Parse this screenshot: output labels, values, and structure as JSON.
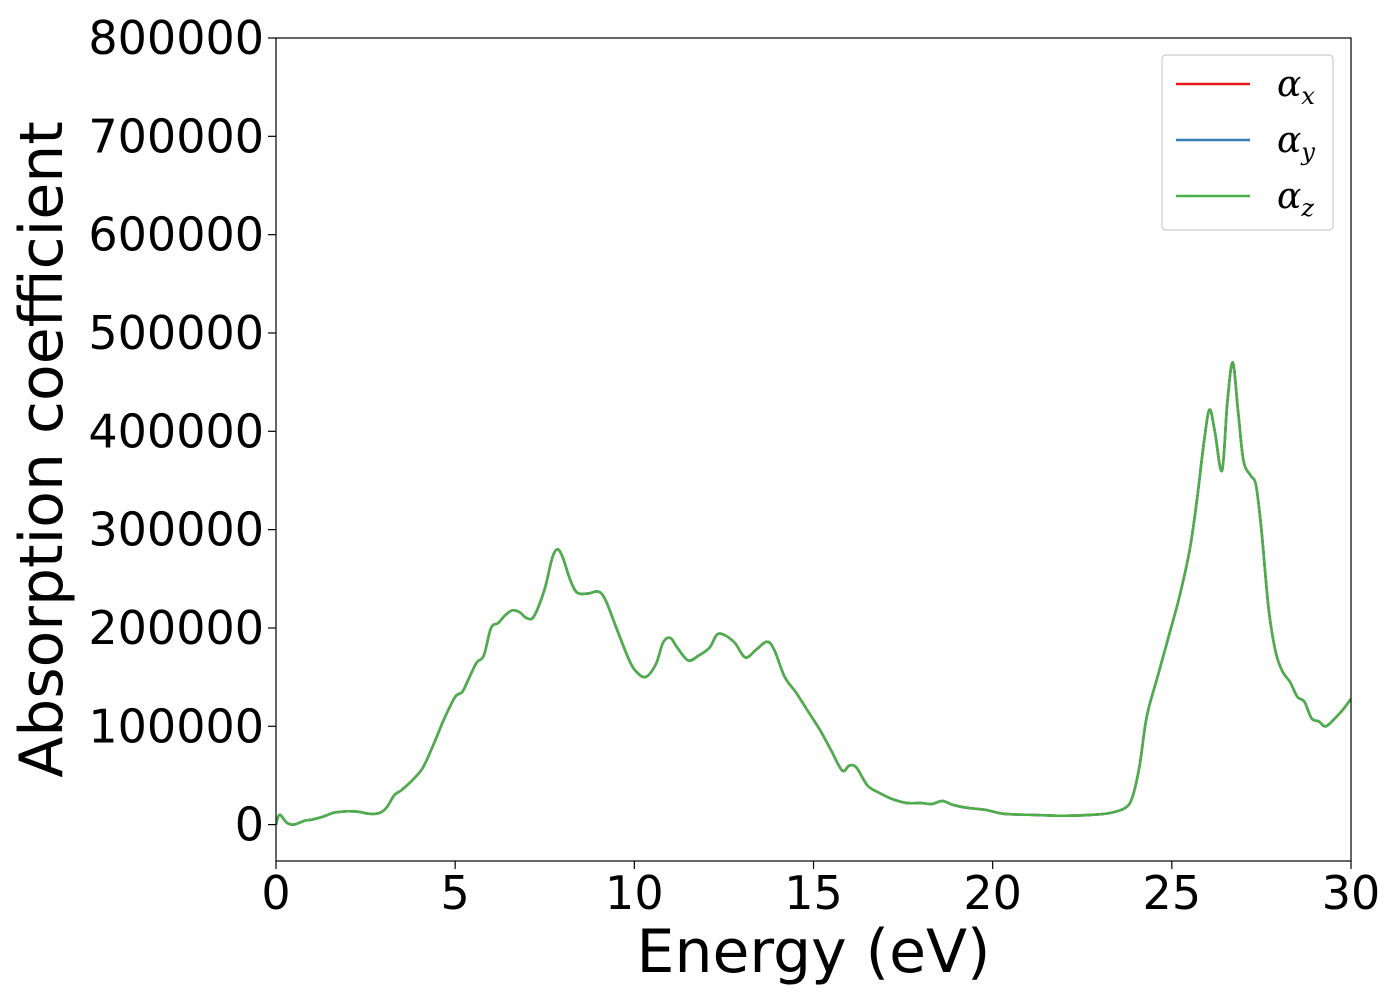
{
  "chart_data": {
    "type": "line",
    "title": "",
    "xlabel": "Energy (eV)",
    "ylabel": "Absorption coefficient",
    "xlim": [
      0,
      30
    ],
    "ylim": [
      -37000,
      800000
    ],
    "xticks": [
      0,
      5,
      10,
      15,
      20,
      25,
      30
    ],
    "xtick_labels": [
      "0",
      "5",
      "10",
      "15",
      "20",
      "25",
      "30"
    ],
    "yticks": [
      0,
      100000,
      200000,
      300000,
      400000,
      500000,
      600000,
      700000,
      800000
    ],
    "ytick_labels": [
      "0",
      "100000",
      "200000",
      "300000",
      "400000",
      "500000",
      "600000",
      "700000",
      "800000"
    ],
    "grid": false,
    "legend_position": "top-right",
    "x": [
      0,
      0.1,
      0.3,
      0.5,
      0.8,
      1.0,
      1.3,
      1.6,
      1.8,
      2.0,
      2.3,
      2.6,
      2.9,
      3.1,
      3.3,
      3.5,
      3.8,
      4.1,
      4.4,
      4.7,
      5.0,
      5.2,
      5.4,
      5.6,
      5.8,
      6.0,
      6.2,
      6.4,
      6.6,
      6.8,
      7.0,
      7.2,
      7.5,
      7.7,
      7.85,
      8.0,
      8.2,
      8.4,
      8.7,
      9.0,
      9.2,
      9.5,
      9.8,
      10.0,
      10.3,
      10.6,
      10.8,
      11.0,
      11.2,
      11.5,
      11.8,
      12.1,
      12.3,
      12.5,
      12.8,
      13.1,
      13.4,
      13.7,
      13.9,
      14.2,
      14.5,
      14.8,
      15.2,
      15.5,
      15.8,
      16.0,
      16.2,
      16.5,
      16.8,
      17.2,
      17.6,
      18.0,
      18.3,
      18.6,
      18.9,
      19.3,
      19.8,
      20.3,
      21.0,
      22.0,
      22.8,
      23.3,
      23.7,
      23.9,
      24.1,
      24.3,
      24.6,
      24.9,
      25.2,
      25.5,
      25.7,
      25.9,
      26.05,
      26.2,
      26.4,
      26.55,
      26.7,
      26.85,
      27.0,
      27.2,
      27.35,
      27.5,
      27.7,
      27.9,
      28.1,
      28.3,
      28.5,
      28.7,
      28.9,
      29.1,
      29.3,
      29.6,
      29.8,
      30.0
    ],
    "series": [
      {
        "name": "αx",
        "color": "#e41a1c",
        "values": [
          0,
          10000,
          2000,
          0,
          4000,
          5000,
          8000,
          12000,
          13000,
          13500,
          13000,
          11000,
          12000,
          18000,
          30000,
          35000,
          45000,
          58000,
          82000,
          108000,
          130000,
          135000,
          150000,
          165000,
          172000,
          200000,
          205000,
          213000,
          218000,
          216000,
          210000,
          212000,
          240000,
          270000,
          280000,
          272000,
          250000,
          236000,
          235000,
          237000,
          228000,
          200000,
          172000,
          158000,
          150000,
          163000,
          185000,
          190000,
          180000,
          167000,
          172000,
          180000,
          193000,
          193000,
          185000,
          170000,
          178000,
          186000,
          178000,
          150000,
          135000,
          118000,
          95000,
          75000,
          55000,
          60000,
          58000,
          40000,
          33000,
          26000,
          22000,
          22000,
          21000,
          24000,
          20000,
          17000,
          15000,
          11000,
          10000,
          9000,
          10000,
          12000,
          17000,
          28000,
          60000,
          110000,
          150000,
          190000,
          230000,
          280000,
          330000,
          390000,
          422000,
          400000,
          360000,
          430000,
          470000,
          420000,
          370000,
          355000,
          345000,
          300000,
          220000,
          175000,
          155000,
          145000,
          130000,
          125000,
          108000,
          105000,
          100000,
          110000,
          118000,
          128000
        ]
      },
      {
        "name": "αy",
        "color": "#377eb8",
        "values": [
          0,
          10000,
          2000,
          0,
          4000,
          5000,
          8000,
          12000,
          13000,
          13500,
          13000,
          11000,
          12000,
          18000,
          30000,
          35000,
          45000,
          58000,
          82000,
          108000,
          130000,
          135000,
          150000,
          165000,
          172000,
          200000,
          205000,
          213000,
          218000,
          216000,
          210000,
          212000,
          240000,
          270000,
          280000,
          272000,
          250000,
          236000,
          235000,
          237000,
          228000,
          200000,
          172000,
          158000,
          150000,
          163000,
          185000,
          190000,
          180000,
          167000,
          172000,
          180000,
          193000,
          193000,
          185000,
          170000,
          178000,
          186000,
          178000,
          150000,
          135000,
          118000,
          95000,
          75000,
          55000,
          60000,
          58000,
          40000,
          33000,
          26000,
          22000,
          22000,
          21000,
          24000,
          20000,
          17000,
          15000,
          11000,
          10000,
          9000,
          10000,
          12000,
          17000,
          28000,
          60000,
          110000,
          150000,
          190000,
          230000,
          280000,
          330000,
          390000,
          422000,
          400000,
          360000,
          430000,
          470000,
          420000,
          370000,
          355000,
          345000,
          300000,
          220000,
          175000,
          155000,
          145000,
          130000,
          125000,
          108000,
          105000,
          100000,
          110000,
          118000,
          128000
        ]
      },
      {
        "name": "αz",
        "color": "#4daf4a",
        "values": [
          0,
          10000,
          2000,
          0,
          4000,
          5000,
          8000,
          12000,
          13000,
          13500,
          13000,
          11000,
          12000,
          18000,
          30000,
          35000,
          45000,
          58000,
          82000,
          108000,
          130000,
          135000,
          150000,
          165000,
          172000,
          200000,
          205000,
          213000,
          218000,
          216000,
          210000,
          212000,
          240000,
          270000,
          280000,
          272000,
          250000,
          236000,
          235000,
          237000,
          228000,
          200000,
          172000,
          158000,
          150000,
          163000,
          185000,
          190000,
          180000,
          167000,
          172000,
          180000,
          193000,
          193000,
          185000,
          170000,
          178000,
          186000,
          178000,
          150000,
          135000,
          118000,
          95000,
          75000,
          55000,
          60000,
          58000,
          40000,
          33000,
          26000,
          22000,
          22000,
          21000,
          24000,
          20000,
          17000,
          15000,
          11000,
          10000,
          9000,
          10000,
          12000,
          17000,
          28000,
          60000,
          110000,
          150000,
          190000,
          230000,
          280000,
          330000,
          390000,
          422000,
          400000,
          360000,
          430000,
          470000,
          420000,
          370000,
          355000,
          345000,
          300000,
          220000,
          175000,
          155000,
          145000,
          130000,
          125000,
          108000,
          105000,
          100000,
          110000,
          118000,
          128000
        ]
      }
    ],
    "legend": [
      {
        "symbol": "α",
        "sub": "x"
      },
      {
        "symbol": "α",
        "sub": "y"
      },
      {
        "symbol": "α",
        "sub": "z"
      }
    ]
  }
}
